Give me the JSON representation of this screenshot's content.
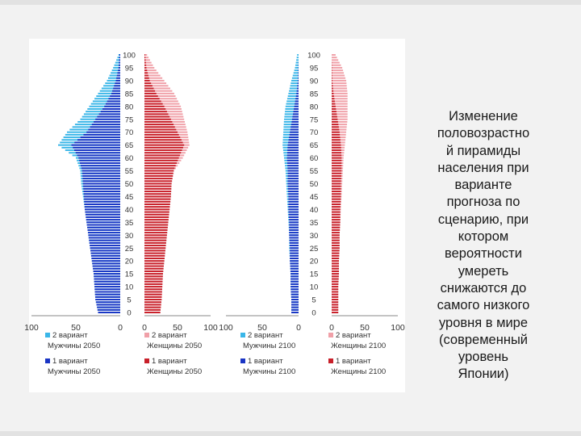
{
  "caption": {
    "lines": [
      "Изменение",
      "половозрастно",
      "й пирамиды",
      "населения при",
      "варианте",
      "прогноза по",
      "сценарию, при",
      "котором",
      "вероятности",
      "умереть",
      "снижаются до",
      "самого низкого",
      "уровня в мире",
      "(современный",
      "уровень",
      "Японии)"
    ]
  },
  "colors": {
    "male_v2": "#3ab6e8",
    "male_v1": "#1a35c4",
    "female_v2": "#f0a0a8",
    "female_v1": "#c8202a"
  },
  "chart_data": [
    {
      "type": "bar",
      "title": "",
      "orientation": "horizontal",
      "side": "male",
      "xlim": [
        100,
        0
      ],
      "x_ticks": [
        "100",
        "50",
        "0"
      ],
      "legend": [
        {
          "line1": "2 вариант",
          "line2": "Мужчины 2050",
          "color": "#3ab6e8"
        },
        {
          "line1": "1 вариант",
          "line2": "Мужчины 2050",
          "color": "#1a35c4"
        }
      ],
      "series": [
        {
          "name": "2 вариант Мужчины 2050",
          "ages": [
            0,
            5,
            10,
            15,
            20,
            25,
            30,
            35,
            40,
            45,
            50,
            55,
            60,
            65,
            70,
            75,
            80,
            85,
            90,
            95,
            100
          ],
          "values": [
            25,
            28,
            29,
            30,
            32,
            34,
            36,
            38,
            40,
            42,
            44,
            45,
            50,
            70,
            60,
            45,
            35,
            25,
            15,
            8,
            2
          ]
        },
        {
          "name": "1 вариант Мужчины 2050",
          "ages": [
            0,
            5,
            10,
            15,
            20,
            25,
            30,
            35,
            40,
            45,
            50,
            55,
            60,
            65,
            70,
            75,
            80,
            85,
            90,
            95,
            100
          ],
          "values": [
            25,
            28,
            29,
            30,
            32,
            34,
            36,
            38,
            40,
            41,
            42,
            43,
            47,
            55,
            38,
            28,
            18,
            10,
            5,
            2,
            1
          ]
        }
      ]
    },
    {
      "type": "bar",
      "title": "",
      "orientation": "horizontal",
      "side": "female",
      "xlim": [
        0,
        100
      ],
      "x_ticks": [
        "0",
        "50",
        "100"
      ],
      "y_ticks": [
        "0",
        "5",
        "10",
        "15",
        "20",
        "25",
        "30",
        "35",
        "40",
        "45",
        "50",
        "55",
        "60",
        "65",
        "70",
        "75",
        "80",
        "85",
        "90",
        "95",
        "100"
      ],
      "legend": [
        {
          "line1": "2 вариант",
          "line2": "Женщины 2050",
          "color": "#f0a0a8"
        },
        {
          "line1": "1 вариант",
          "line2": "Женщины 2050",
          "color": "#c8202a"
        }
      ],
      "series": [
        {
          "name": "2 вариант Женщины 2050",
          "ages": [
            0,
            5,
            10,
            15,
            20,
            25,
            30,
            35,
            40,
            45,
            50,
            55,
            60,
            65,
            70,
            75,
            80,
            85,
            90,
            95,
            100
          ],
          "values": [
            24,
            26,
            27,
            28,
            30,
            32,
            34,
            36,
            38,
            40,
            41,
            45,
            58,
            68,
            65,
            60,
            55,
            45,
            30,
            15,
            4
          ]
        },
        {
          "name": "1 вариант Женщины 2050",
          "ages": [
            0,
            5,
            10,
            15,
            20,
            25,
            30,
            35,
            40,
            45,
            50,
            55,
            60,
            65,
            70,
            75,
            80,
            85,
            90,
            95,
            100
          ],
          "values": [
            24,
            26,
            27,
            28,
            30,
            32,
            34,
            36,
            38,
            40,
            41,
            44,
            52,
            60,
            50,
            40,
            30,
            18,
            8,
            3,
            1
          ]
        }
      ]
    },
    {
      "type": "bar",
      "title": "",
      "orientation": "horizontal",
      "side": "male",
      "xlim": [
        100,
        0
      ],
      "x_ticks": [
        "100",
        "50",
        "0"
      ],
      "legend": [
        {
          "line1": "2 вариант",
          "line2": "Мужчины 2100",
          "color": "#3ab6e8"
        },
        {
          "line1": "1 вариант",
          "line2": "Мужчины 2100",
          "color": "#1a35c4"
        }
      ],
      "series": [
        {
          "name": "2 вариант Мужчины 2100",
          "ages": [
            0,
            5,
            10,
            15,
            20,
            25,
            30,
            35,
            40,
            45,
            50,
            55,
            60,
            65,
            70,
            75,
            80,
            85,
            90,
            95,
            100
          ],
          "values": [
            10,
            10,
            11,
            11,
            12,
            13,
            13,
            14,
            15,
            16,
            17,
            18,
            20,
            22,
            21,
            20,
            18,
            14,
            10,
            5,
            2
          ]
        },
        {
          "name": "1 вариант Мужчины 2100",
          "ages": [
            0,
            5,
            10,
            15,
            20,
            25,
            30,
            35,
            40,
            45,
            50,
            55,
            60,
            65,
            70,
            75,
            80,
            85,
            90,
            95,
            100
          ],
          "values": [
            10,
            10,
            11,
            11,
            12,
            12,
            13,
            13,
            14,
            14,
            15,
            15,
            16,
            15,
            12,
            9,
            6,
            3,
            1,
            0.5,
            0
          ]
        }
      ]
    },
    {
      "type": "bar",
      "title": "",
      "orientation": "horizontal",
      "side": "female",
      "xlim": [
        0,
        100
      ],
      "x_ticks": [
        "0",
        "50",
        "100"
      ],
      "y_ticks": [
        "0",
        "5",
        "10",
        "15",
        "20",
        "25",
        "30",
        "35",
        "40",
        "45",
        "50",
        "55",
        "60",
        "65",
        "70",
        "75",
        "80",
        "85",
        "90",
        "95",
        "100"
      ],
      "legend": [
        {
          "line1": "2 вариант",
          "line2": "Женщины 2100",
          "color": "#f0a0a8"
        },
        {
          "line1": "1 вариант",
          "line2": "Женщины 2100",
          "color": "#c8202a"
        }
      ],
      "series": [
        {
          "name": "2 вариант Женщины 2100",
          "ages": [
            0,
            5,
            10,
            15,
            20,
            25,
            30,
            35,
            40,
            45,
            50,
            55,
            60,
            65,
            70,
            75,
            80,
            85,
            90,
            95,
            100
          ],
          "values": [
            10,
            10,
            10,
            11,
            11,
            12,
            12,
            13,
            14,
            15,
            16,
            17,
            18,
            20,
            22,
            24,
            24,
            24,
            22,
            16,
            6
          ]
        },
        {
          "name": "1 вариант Женщины 2100",
          "ages": [
            0,
            5,
            10,
            15,
            20,
            25,
            30,
            35,
            40,
            45,
            50,
            55,
            60,
            65,
            70,
            75,
            80,
            85,
            90,
            95,
            100
          ],
          "values": [
            10,
            10,
            10,
            11,
            11,
            12,
            12,
            13,
            13,
            14,
            14,
            15,
            15,
            14,
            12,
            9,
            6,
            3,
            1,
            0.5,
            0
          ]
        }
      ]
    }
  ]
}
